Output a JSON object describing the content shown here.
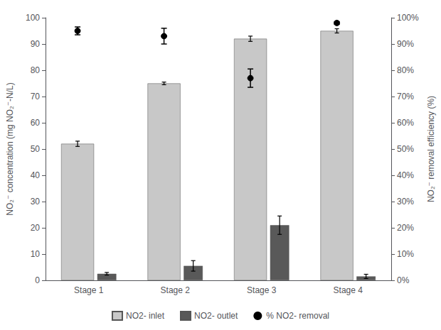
{
  "chart_data": {
    "type": "bar",
    "categories": [
      "Stage 1",
      "Stage 2",
      "Stage 3",
      "Stage 4"
    ],
    "series": [
      {
        "name": "NO2- inlet",
        "type": "bar",
        "color": "#C8C8C8",
        "values": [
          52,
          75,
          92,
          95
        ],
        "errors": [
          1.0,
          0.5,
          1.0,
          0.8
        ]
      },
      {
        "name": "NO2- outlet",
        "type": "bar",
        "color": "#595959",
        "values": [
          2.5,
          5.5,
          21,
          1.5
        ],
        "errors": [
          0.5,
          2.0,
          3.5,
          0.8
        ]
      },
      {
        "name": "% NO2- removal",
        "type": "scatter",
        "axis": "y2",
        "color": "#000000",
        "values": [
          95,
          93,
          77,
          98
        ],
        "errors": [
          1.5,
          3.0,
          3.5,
          0.5
        ]
      }
    ],
    "ylabel": "NO₂⁻ concentration (mg NO₂⁻-N/L)",
    "y2label": "NO₂⁻ removal efficiency (%)",
    "ylim": [
      0,
      100
    ],
    "yticks": [
      0,
      10,
      20,
      30,
      40,
      50,
      60,
      70,
      80,
      90,
      100
    ],
    "y2lim": [
      0,
      100
    ],
    "y2ticks": [
      {
        "value": 0,
        "label": "0%"
      },
      {
        "value": 10,
        "label": "10%"
      },
      {
        "value": 20,
        "label": "20%"
      },
      {
        "value": 30,
        "label": "30%"
      },
      {
        "value": 40,
        "label": "40%"
      },
      {
        "value": 50,
        "label": "50%"
      },
      {
        "value": 60,
        "label": "60%"
      },
      {
        "value": 70,
        "label": "70%"
      },
      {
        "value": 80,
        "label": "80%"
      },
      {
        "value": 90,
        "label": "90%"
      },
      {
        "value": 100,
        "label": "100%"
      }
    ],
    "grid": false,
    "legend": "bottom"
  }
}
